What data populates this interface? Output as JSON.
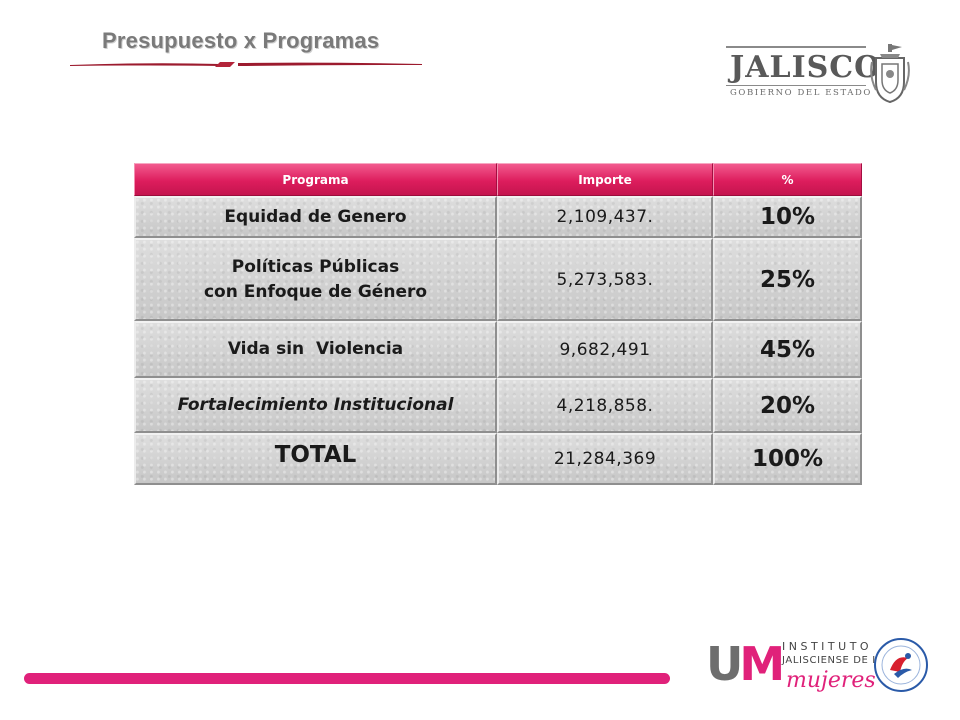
{
  "header": {
    "title": "Presupuesto x Programas"
  },
  "logos": {
    "jalisco_word": "JALISCO",
    "jalisco_subtitle": "GOBIERNO DEL ESTADO",
    "instituto_line1": "INSTITUTO",
    "instituto_line2": "JALISCIENSE DE LAS",
    "instituto_line3": "mujeres",
    "instituto_initials": "IJM"
  },
  "table": {
    "columns": [
      "Programa",
      "Importe",
      "%"
    ],
    "rows": [
      {
        "programa": "Equidad de Genero",
        "importe": "2,109,437.",
        "pct": "10%"
      },
      {
        "programa_line1": "Políticas Públicas",
        "programa_line2": "con Enfoque de Género",
        "importe": "5,273,583.",
        "pct": "25%"
      },
      {
        "programa": "Vida sin  Violencia",
        "importe": "9,682,491",
        "pct": "45%"
      },
      {
        "programa": "Fortalecimiento Institucional",
        "importe": "4,218,858.",
        "pct": "20%"
      }
    ],
    "total": {
      "label": "TOTAL",
      "importe": "21,284,369",
      "pct": "100%"
    }
  },
  "colors": {
    "header_pink": "#dd1d5d",
    "accent_magenta": "#e0217a",
    "cell_gray": "#cfcfcf",
    "title_gray": "#7a7a7a"
  }
}
